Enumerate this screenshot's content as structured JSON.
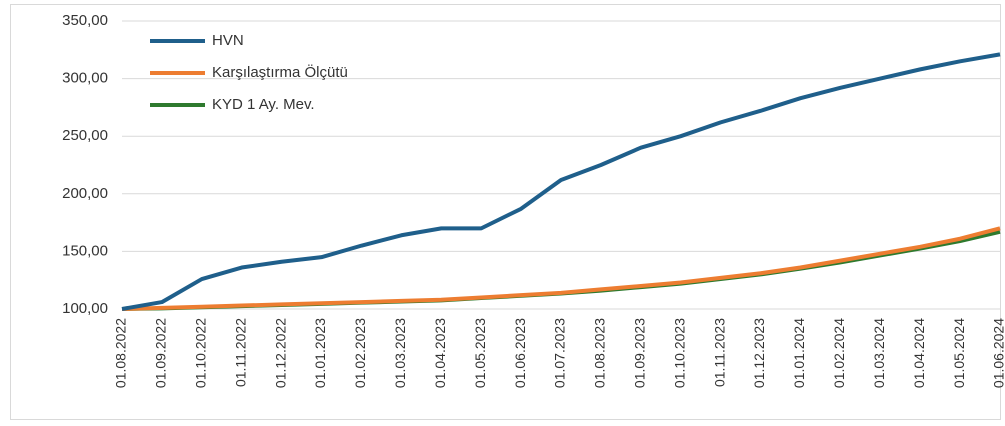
{
  "chart_data": {
    "type": "line",
    "categories": [
      "01.08.2022",
      "01.09.2022",
      "01.10.2022",
      "01.11.2022",
      "01.12.2022",
      "01.01.2023",
      "01.02.2023",
      "01.03.2023",
      "01.04.2023",
      "01.05.2023",
      "01.06.2023",
      "01.07.2023",
      "01.08.2023",
      "01.09.2023",
      "01.10.2023",
      "01.11.2023",
      "01.12.2023",
      "01.01.2024",
      "01.02.2024",
      "01.03.2024",
      "01.04.2024",
      "01.05.2024",
      "01.06.2024"
    ],
    "series": [
      {
        "name": "HVN",
        "color": "#1f5f8b",
        "values": [
          100,
          106,
          126,
          136,
          141,
          145,
          155,
          164,
          170,
          170,
          187,
          212,
          225,
          240,
          250,
          262,
          272,
          283,
          292,
          300,
          308,
          315,
          321
        ]
      },
      {
        "name": "Karşılaştırma Ölçütü",
        "color": "#ed7d31",
        "values": [
          100,
          101,
          102,
          103,
          104,
          105,
          106,
          107,
          108,
          110,
          112,
          114,
          117,
          120,
          123,
          127,
          131,
          136,
          142,
          148,
          154,
          161,
          170
        ]
      },
      {
        "name": "KYD 1 Ay. Mev.",
        "color": "#2e7a2e",
        "values": [
          100,
          100.5,
          101.5,
          102.5,
          103.5,
          104.5,
          105.5,
          106.5,
          107.5,
          109.5,
          111.5,
          113.5,
          116,
          119,
          122,
          126,
          130,
          135,
          140.5,
          146.5,
          152.5,
          159,
          167
        ]
      }
    ],
    "ylim": [
      100,
      350
    ],
    "yticks": [
      {
        "value": 100,
        "label": "100,00"
      },
      {
        "value": 150,
        "label": "150,00"
      },
      {
        "value": 200,
        "label": "200,00"
      },
      {
        "value": 250,
        "label": "250,00"
      },
      {
        "value": 300,
        "label": "300,00"
      },
      {
        "value": 350,
        "label": "350,00"
      }
    ],
    "grid": true,
    "legend": "upper-left"
  }
}
